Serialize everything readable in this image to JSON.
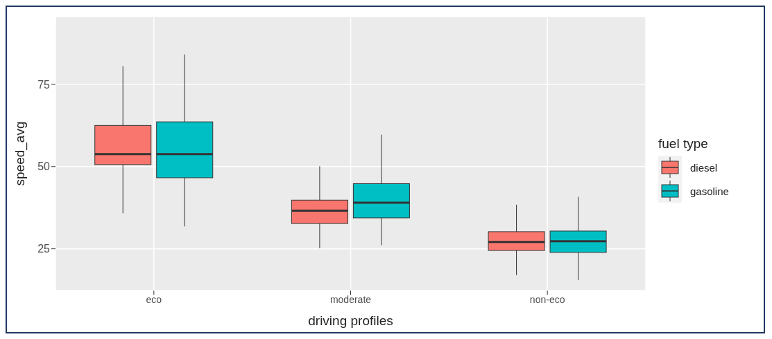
{
  "chart_data": {
    "type": "box",
    "xlabel": "driving profiles",
    "ylabel": "speed_avg",
    "legend_title": "fuel type",
    "categories": [
      "eco",
      "moderate",
      "non-eco"
    ],
    "series": [
      {
        "name": "diesel",
        "color": "#f8766d",
        "boxes": [
          {
            "low": 35.8,
            "q1": 50.6,
            "median": 53.8,
            "q3": 62.5,
            "high": 80.5
          },
          {
            "low": 25.2,
            "q1": 32.7,
            "median": 36.6,
            "q3": 39.8,
            "high": 50.1
          },
          {
            "low": 17.0,
            "q1": 24.5,
            "median": 27.1,
            "q3": 30.2,
            "high": 38.4
          }
        ]
      },
      {
        "name": "gasoline",
        "color": "#00bfc4",
        "boxes": [
          {
            "low": 31.8,
            "q1": 46.6,
            "median": 53.8,
            "q3": 63.6,
            "high": 84.1
          },
          {
            "low": 26.1,
            "q1": 34.4,
            "median": 39.0,
            "q3": 44.8,
            "high": 59.7
          },
          {
            "low": 15.5,
            "q1": 23.9,
            "median": 27.3,
            "q3": 30.4,
            "high": 40.8
          }
        ]
      }
    ],
    "ylim": [
      12.3,
      95.6
    ],
    "yticks": [
      25,
      50,
      75
    ],
    "grid": true,
    "legend": "right"
  }
}
